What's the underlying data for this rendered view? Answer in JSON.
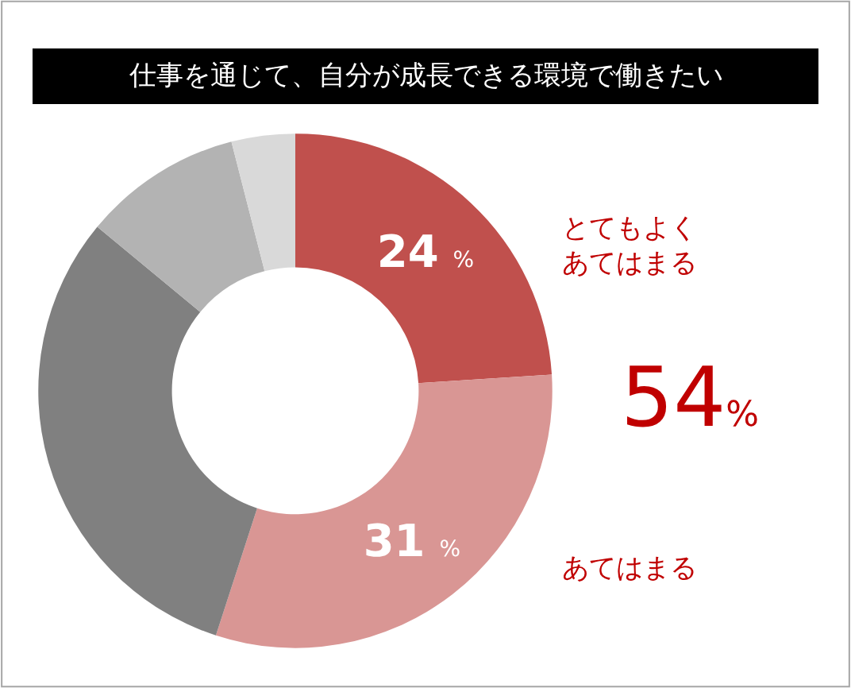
{
  "chart_data": {
    "type": "donut",
    "title": "仕事を通じて、自分が成長できる環境で働きたい",
    "categories": [
      "とてもよくあてはまる",
      "あてはまる",
      null,
      null,
      null
    ],
    "values": [
      24,
      31,
      31,
      10,
      4
    ],
    "colors": [
      "#c0504d",
      "#d99694",
      "#808080",
      "#b3b3b3",
      "#d9d9d9"
    ],
    "value_labels": [
      "24 %",
      "31 %",
      null,
      null,
      null
    ],
    "annotations": [
      "54%"
    ],
    "legend": false
  }
}
